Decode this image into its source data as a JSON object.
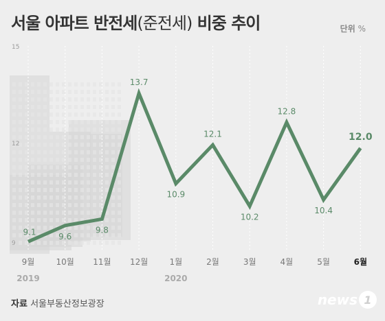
{
  "header": {
    "title_main": "서울 아파트 반전세",
    "title_paren": "(준전세)",
    "title_tail": " 비중 추이",
    "unit_label": "단위",
    "unit_value": "%"
  },
  "footer": {
    "source_label": "자료",
    "source_value": "서울부동산정보광장",
    "logo_text": "news",
    "logo_mark": "1"
  },
  "colors": {
    "line": "#5a8a68",
    "label": "#5a8a68",
    "axis_tick": "#999999",
    "building": "#d6d6d6"
  },
  "chart_data": {
    "type": "line",
    "categories": [
      "9월",
      "10월",
      "11월",
      "12월",
      "1월",
      "2월",
      "3월",
      "4월",
      "5월",
      "6월"
    ],
    "year_labels": [
      {
        "category_index": 0,
        "text": "2019"
      },
      {
        "category_index": 4,
        "text": "2020"
      }
    ],
    "series": [
      {
        "values": [
          9.1,
          9.6,
          9.8,
          13.7,
          10.9,
          12.1,
          10.2,
          12.8,
          10.4,
          12.0
        ]
      }
    ],
    "data_labels": [
      "9.1",
      "9.6",
      "9.8",
      "13.7",
      "10.9",
      "12.1",
      "10.2",
      "12.8",
      "10.4",
      "12.0"
    ],
    "y_ticks": [
      "9",
      "12",
      "15"
    ],
    "ylim": [
      9,
      15
    ],
    "grid": "vertical dashed",
    "highlight_last": true
  }
}
